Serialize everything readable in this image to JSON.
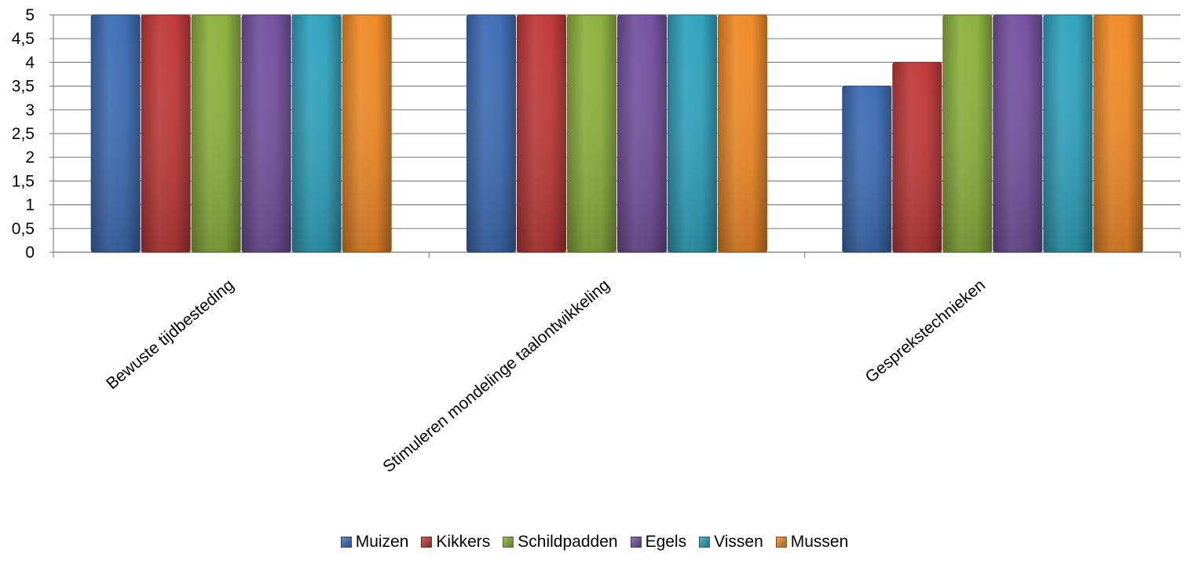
{
  "chart_data": {
    "type": "bar",
    "categories": [
      "Bewuste tijdbesteding",
      "Stimuleren mondelinge taalontwikkeling",
      "Gesprekstechnieken"
    ],
    "series": [
      {
        "name": "Muizen",
        "values": [
          5,
          5,
          3.5
        ],
        "color": "#3F6EB5"
      },
      {
        "name": "Kikkers",
        "values": [
          5,
          5,
          4
        ],
        "color": "#C13B3B"
      },
      {
        "name": "Schildpadden",
        "values": [
          5,
          5,
          5
        ],
        "color": "#8DB13F"
      },
      {
        "name": "Egels",
        "values": [
          5,
          5,
          5
        ],
        "color": "#7652A0"
      },
      {
        "name": "Vissen",
        "values": [
          5,
          5,
          5
        ],
        "color": "#31A3BE"
      },
      {
        "name": "Mussen",
        "values": [
          5,
          5,
          5
        ],
        "color": "#F08A28"
      }
    ],
    "yticks": [
      "0",
      "0,5",
      "1",
      "1,5",
      "2",
      "2,5",
      "3",
      "3,5",
      "4",
      "4,5",
      "5"
    ],
    "ylim": [
      0,
      5
    ],
    "grid": true,
    "legend_position": "bottom"
  }
}
